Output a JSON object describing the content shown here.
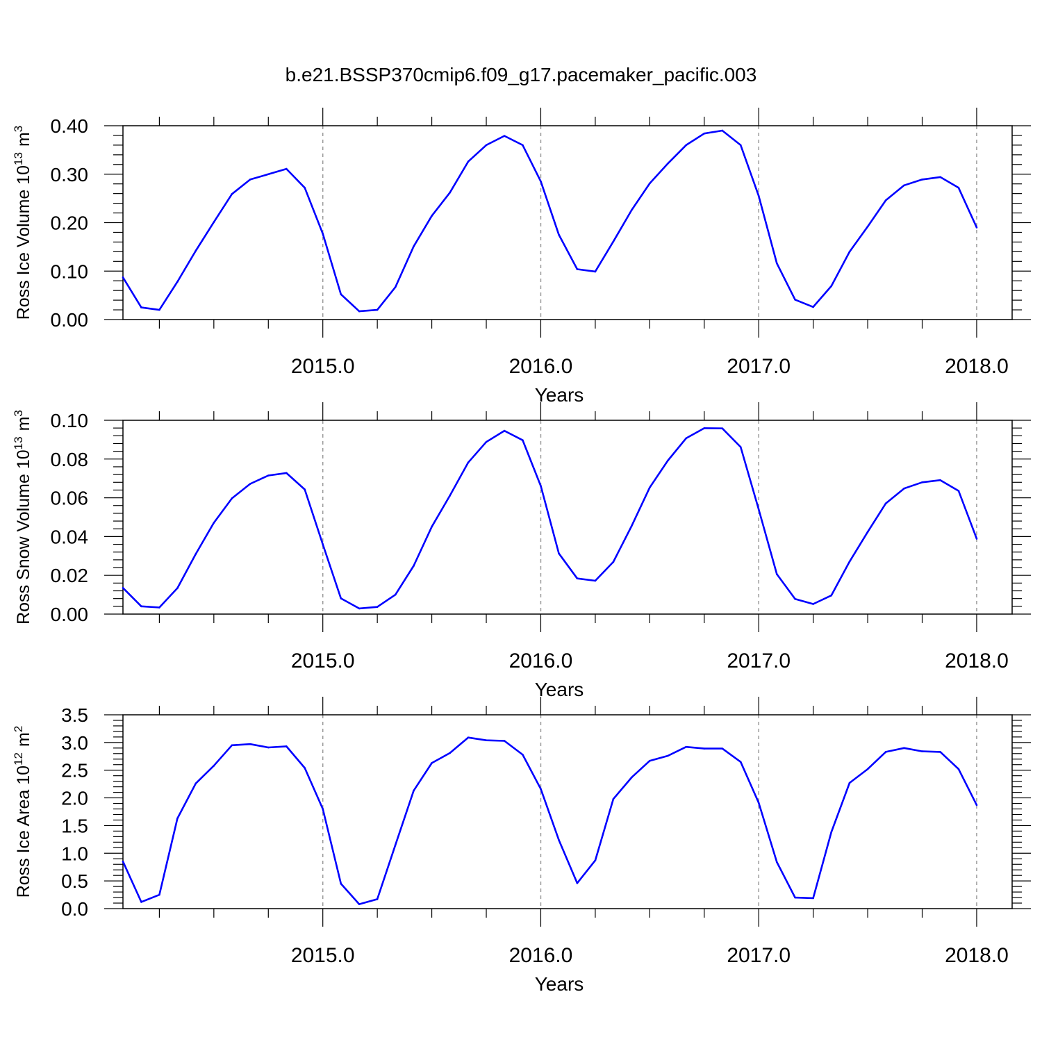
{
  "title": "b.e21.BSSP370cmip6.f09_g17.pacemaker_pacific.003",
  "line_color": "#0000ff",
  "grid": "dashed vertical lines at major x ticks",
  "chart_data": [
    {
      "type": "line",
      "ylabel_text": "Ross Ice Volume 10",
      "ylabel_exp": "13",
      "ylabel_unit": "m",
      "ylabel_unit_exp": "3",
      "xlabel": "Years",
      "xlim": [
        2014.083,
        2018.083
      ],
      "ylim": [
        0,
        0.4
      ],
      "yticks": [
        "0.00",
        "0.10",
        "0.20",
        "0.30",
        "0.40"
      ],
      "xticks": [
        "2015.0",
        "2016.0",
        "2017.0",
        "2018.0"
      ],
      "x": [
        2014.083,
        2014.167,
        2014.25,
        2014.333,
        2014.417,
        2014.5,
        2014.583,
        2014.667,
        2014.75,
        2014.833,
        2014.917,
        2015.0,
        2015.083,
        2015.167,
        2015.25,
        2015.333,
        2015.417,
        2015.5,
        2015.583,
        2015.667,
        2015.75,
        2015.833,
        2015.917,
        2016.0,
        2016.083,
        2016.167,
        2016.25,
        2016.333,
        2016.417,
        2016.5,
        2016.583,
        2016.667,
        2016.75,
        2016.833,
        2016.917,
        2017.0,
        2017.083,
        2017.167,
        2017.25,
        2017.333,
        2017.417,
        2017.5,
        2017.583,
        2017.667,
        2017.75,
        2017.833,
        2017.917,
        2018.0
      ],
      "values": [
        0.087,
        0.025,
        0.02,
        0.078,
        0.142,
        0.201,
        0.259,
        0.289,
        0.3,
        0.311,
        0.272,
        0.177,
        0.052,
        0.017,
        0.02,
        0.067,
        0.151,
        0.214,
        0.262,
        0.326,
        0.36,
        0.379,
        0.36,
        0.285,
        0.175,
        0.104,
        0.099,
        0.161,
        0.226,
        0.281,
        0.322,
        0.36,
        0.384,
        0.39,
        0.36,
        0.255,
        0.116,
        0.041,
        0.026,
        0.069,
        0.14,
        0.192,
        0.246,
        0.277,
        0.289,
        0.294,
        0.272,
        0.19
      ]
    },
    {
      "type": "line",
      "ylabel_text": "Ross Snow Volume 10",
      "ylabel_exp": "13",
      "ylabel_unit": "m",
      "ylabel_unit_exp": "3",
      "xlabel": "Years",
      "xlim": [
        2014.083,
        2018.083
      ],
      "ylim": [
        0,
        0.1
      ],
      "yticks": [
        "0.00",
        "0.02",
        "0.04",
        "0.06",
        "0.08",
        "0.10"
      ],
      "xticks": [
        "2015.0",
        "2016.0",
        "2017.0",
        "2018.0"
      ],
      "x": [
        2014.083,
        2014.167,
        2014.25,
        2014.333,
        2014.417,
        2014.5,
        2014.583,
        2014.667,
        2014.75,
        2014.833,
        2014.917,
        2015.0,
        2015.083,
        2015.167,
        2015.25,
        2015.333,
        2015.417,
        2015.5,
        2015.583,
        2015.667,
        2015.75,
        2015.833,
        2015.917,
        2016.0,
        2016.083,
        2016.167,
        2016.25,
        2016.333,
        2016.417,
        2016.5,
        2016.583,
        2016.667,
        2016.75,
        2016.833,
        2016.917,
        2017.0,
        2017.083,
        2017.167,
        2017.25,
        2017.333,
        2017.417,
        2017.5,
        2017.583,
        2017.667,
        2017.75,
        2017.833,
        2017.917,
        2018.0
      ],
      "values": [
        0.0135,
        0.004,
        0.0034,
        0.0134,
        0.031,
        0.0471,
        0.0597,
        0.0672,
        0.0715,
        0.0728,
        0.0643,
        0.036,
        0.0081,
        0.0029,
        0.0037,
        0.01,
        0.0249,
        0.0451,
        0.0611,
        0.0782,
        0.0888,
        0.0946,
        0.0897,
        0.0661,
        0.0313,
        0.0184,
        0.0172,
        0.0269,
        0.0455,
        0.0653,
        0.0792,
        0.0907,
        0.0959,
        0.0958,
        0.0862,
        0.054,
        0.0206,
        0.0078,
        0.0052,
        0.0096,
        0.0271,
        0.0424,
        0.0571,
        0.0648,
        0.068,
        0.0691,
        0.0636,
        0.0389
      ]
    },
    {
      "type": "line",
      "ylabel_text": "Ross Ice Area 10",
      "ylabel_exp": "12",
      "ylabel_unit": "m",
      "ylabel_unit_exp": "2",
      "xlabel": "Years",
      "xlim": [
        2014.083,
        2018.083
      ],
      "ylim": [
        0,
        3.5
      ],
      "yticks": [
        "0.0",
        "0.5",
        "1.0",
        "1.5",
        "2.0",
        "2.5",
        "3.0",
        "3.5"
      ],
      "xticks": [
        "2015.0",
        "2016.0",
        "2017.0",
        "2018.0"
      ],
      "x": [
        2014.083,
        2014.167,
        2014.25,
        2014.333,
        2014.417,
        2014.5,
        2014.583,
        2014.667,
        2014.75,
        2014.833,
        2014.917,
        2015.0,
        2015.083,
        2015.167,
        2015.25,
        2015.333,
        2015.417,
        2015.5,
        2015.583,
        2015.667,
        2015.75,
        2015.833,
        2015.917,
        2016.0,
        2016.083,
        2016.167,
        2016.25,
        2016.333,
        2016.417,
        2016.5,
        2016.583,
        2016.667,
        2016.75,
        2016.833,
        2016.917,
        2017.0,
        2017.083,
        2017.167,
        2017.25,
        2017.333,
        2017.417,
        2017.5,
        2017.583,
        2017.667,
        2017.75,
        2017.833,
        2017.917,
        2018.0
      ],
      "values": [
        0.85,
        0.12,
        0.25,
        1.63,
        2.26,
        2.58,
        2.95,
        2.97,
        2.91,
        2.93,
        2.54,
        1.8,
        0.45,
        0.08,
        0.17,
        1.15,
        2.13,
        2.63,
        2.81,
        3.09,
        3.04,
        3.03,
        2.78,
        2.16,
        1.24,
        0.46,
        0.87,
        1.98,
        2.37,
        2.67,
        2.76,
        2.92,
        2.89,
        2.89,
        2.65,
        1.91,
        0.84,
        0.2,
        0.19,
        1.38,
        2.27,
        2.52,
        2.83,
        2.9,
        2.84,
        2.83,
        2.52,
        1.87
      ]
    }
  ]
}
